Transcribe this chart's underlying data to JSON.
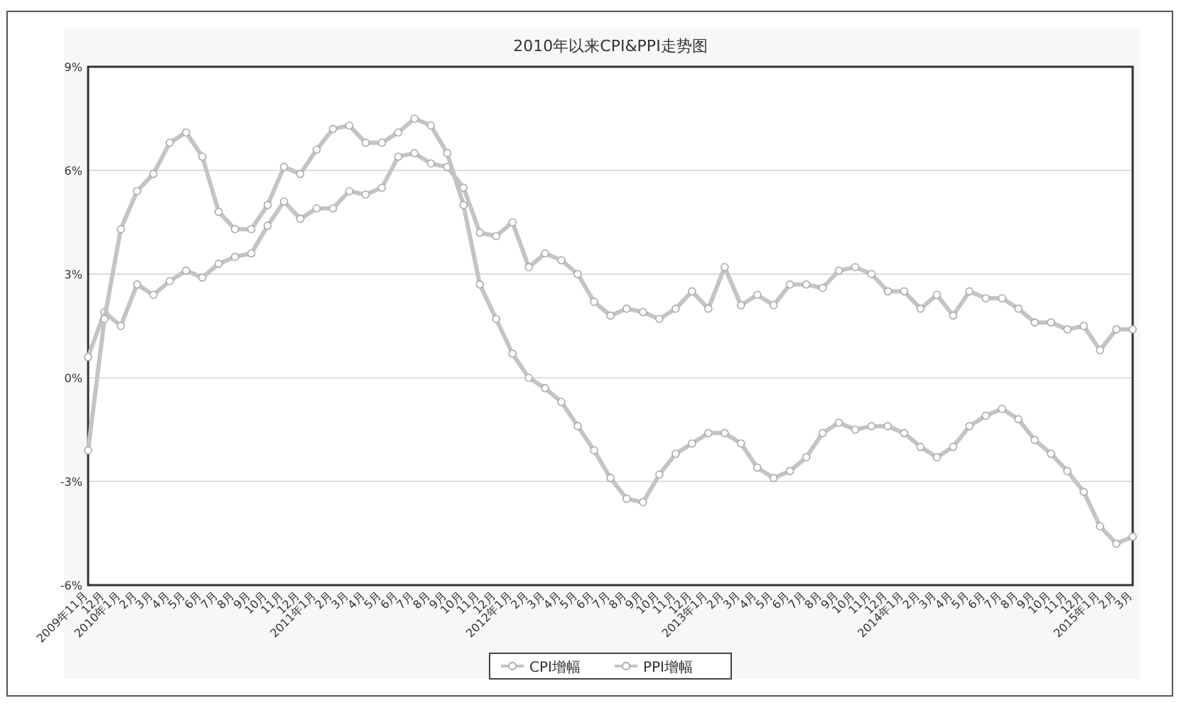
{
  "chart_data": {
    "type": "line",
    "title": "2010年以来CPI&PPI走势图",
    "categories": [
      "2009年11月",
      "12月",
      "2010年1月",
      "2月",
      "3月",
      "4月",
      "5月",
      "6月",
      "7月",
      "8月",
      "9月",
      "10月",
      "11月",
      "12月",
      "2011年1月",
      "2月",
      "3月",
      "4月",
      "5月",
      "6月",
      "7月",
      "8月",
      "9月",
      "10月",
      "11月",
      "12月",
      "2012年1月",
      "2月",
      "3月",
      "4月",
      "5月",
      "6月",
      "7月",
      "8月",
      "9月",
      "10月",
      "11月",
      "12月",
      "2013年1月",
      "2月",
      "3月",
      "4月",
      "5月",
      "6月",
      "7月",
      "8月",
      "9月",
      "10月",
      "11月",
      "12月",
      "2014年1月",
      "2月",
      "3月",
      "4月",
      "5月",
      "6月",
      "7月",
      "8月",
      "9月",
      "10月",
      "11月",
      "12月",
      "2015年1月",
      "2月",
      "3月"
    ],
    "series": [
      {
        "name": "CPI增幅",
        "color": "#c4c4c4",
        "values": [
          0.6,
          1.9,
          1.5,
          2.7,
          2.4,
          2.8,
          3.1,
          2.9,
          3.3,
          3.5,
          3.6,
          4.4,
          5.1,
          4.6,
          4.9,
          4.9,
          5.4,
          5.3,
          5.5,
          6.4,
          6.5,
          6.2,
          6.1,
          5.5,
          4.2,
          4.1,
          4.5,
          3.2,
          3.6,
          3.4,
          3.0,
          2.2,
          1.8,
          2.0,
          1.9,
          1.7,
          2.0,
          2.5,
          2.0,
          3.2,
          2.1,
          2.4,
          2.1,
          2.7,
          2.7,
          2.6,
          3.1,
          3.2,
          3.0,
          2.5,
          2.5,
          2.0,
          2.4,
          1.8,
          2.5,
          2.3,
          2.3,
          2.0,
          1.6,
          1.6,
          1.4,
          1.5,
          0.8,
          1.4,
          1.4
        ]
      },
      {
        "name": "PPI增幅",
        "color": "#c4c4c4",
        "values": [
          -2.1,
          1.7,
          4.3,
          5.4,
          5.9,
          6.8,
          7.1,
          6.4,
          4.8,
          4.3,
          4.3,
          5.0,
          6.1,
          5.9,
          6.6,
          7.2,
          7.3,
          6.8,
          6.8,
          7.1,
          7.5,
          7.3,
          6.5,
          5.0,
          2.7,
          1.7,
          0.7,
          0.0,
          -0.3,
          -0.7,
          -1.4,
          -2.1,
          -2.9,
          -3.5,
          -3.6,
          -2.8,
          -2.2,
          -1.9,
          -1.6,
          -1.6,
          -1.9,
          -2.6,
          -2.9,
          -2.7,
          -2.3,
          -1.6,
          -1.3,
          -1.5,
          -1.4,
          -1.4,
          -1.6,
          -2.0,
          -2.3,
          -2.0,
          -1.4,
          -1.1,
          -0.9,
          -1.2,
          -1.8,
          -2.2,
          -2.7,
          -3.3,
          -4.3,
          -4.8,
          -4.6
        ]
      }
    ],
    "ylim": [
      -6,
      9
    ],
    "yticks": [
      {
        "value": -6,
        "label": "-6%"
      },
      {
        "value": -3,
        "label": "-3%"
      },
      {
        "value": 0,
        "label": "0%"
      },
      {
        "value": 3,
        "label": "3%"
      },
      {
        "value": 6,
        "label": "6%"
      },
      {
        "value": 9,
        "label": "9%"
      }
    ],
    "grid": "y",
    "legend": "bottom",
    "marker": "circle",
    "line_style": "solid"
  }
}
